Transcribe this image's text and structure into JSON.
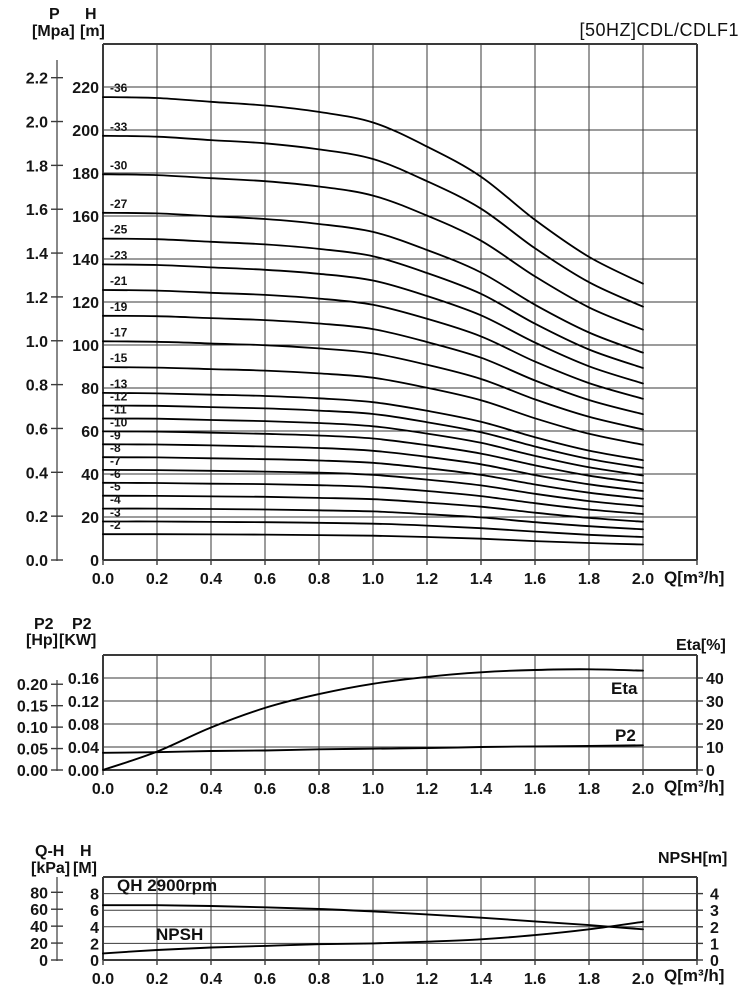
{
  "title": "[50HZ]CDL/CDLF1",
  "accent_color": "#000000",
  "grid_color": "#3a3a3a",
  "axis_headers": {
    "pressure": "P",
    "head": "H",
    "pressure_unit": "[Mpa]",
    "head_unit": "[m]",
    "power_hp": "P2",
    "power_kw": "P2",
    "hp_unit": "[Hp]",
    "kw_unit": "[KW]",
    "eta_axis": "Eta[%]",
    "qh": "Q-H",
    "h_small": "H",
    "kpa_unit": "[kPa]",
    "m_unit": "[M]",
    "npsh_axis": "NPSH[m]",
    "flow": "Q[m³/h]"
  },
  "inline_labels": {
    "eta": "Eta",
    "p2": "P2",
    "qh_rpm": "QH 2900rpm",
    "npsh": "NPSH"
  },
  "chart_data": [
    {
      "id": "head-curves",
      "type": "line",
      "title": "[50HZ]CDL/CDLF1",
      "xlabel": "Q[m³/h]",
      "ylabel_outer": "P [Mpa]",
      "ylabel_inner": "H [m]",
      "xlim": [
        0,
        2.2
      ],
      "ylim_m": [
        0,
        240
      ],
      "grid": true,
      "x": [
        0,
        0.2,
        0.4,
        0.6,
        0.8,
        1.0,
        1.2,
        1.4,
        1.6,
        1.8,
        2.0
      ],
      "x_tick_labels": [
        "0.0",
        "0.2",
        "0.4",
        "0.6",
        "0.8",
        "1.0",
        "1.2",
        "1.4",
        "1.6",
        "1.8",
        "2.0"
      ],
      "h_ticks": [
        0,
        20,
        40,
        60,
        80,
        100,
        120,
        140,
        160,
        180,
        200,
        220
      ],
      "p_ticks": [
        "0.0",
        "0.2",
        "0.4",
        "0.6",
        "0.8",
        "1.0",
        "1.2",
        "1.4",
        "1.6",
        "1.8",
        "2.0",
        "2.2"
      ],
      "series": [
        {
          "name": "-36",
          "values": [
            215.3,
            214.9,
            213.1,
            211.4,
            208.4,
            203.5,
            192.3,
            178.3,
            158.2,
            141.0,
            128.5
          ]
        },
        {
          "name": "-33",
          "values": [
            197.3,
            196.9,
            195.3,
            193.8,
            191.0,
            186.5,
            176.2,
            163.4,
            145.0,
            129.2,
            117.8
          ]
        },
        {
          "name": "-30",
          "values": [
            179.4,
            179.0,
            177.6,
            176.2,
            173.7,
            169.5,
            160.2,
            148.5,
            131.9,
            117.5,
            107.1
          ]
        },
        {
          "name": "-27",
          "values": [
            161.5,
            161.2,
            159.9,
            158.6,
            156.3,
            152.6,
            144.2,
            133.7,
            118.7,
            105.8,
            96.4
          ]
        },
        {
          "name": "-25",
          "values": [
            149.5,
            149.2,
            148.0,
            146.8,
            144.7,
            141.3,
            133.5,
            123.8,
            109.9,
            97.9,
            89.3
          ]
        },
        {
          "name": "-23",
          "values": [
            137.5,
            137.2,
            136.1,
            135.0,
            133.1,
            130.0,
            122.8,
            113.8,
            101.1,
            90.1,
            82.1
          ]
        },
        {
          "name": "-21",
          "values": [
            125.6,
            125.3,
            124.3,
            123.3,
            121.6,
            118.7,
            112.2,
            104.0,
            92.3,
            82.3,
            75.0
          ]
        },
        {
          "name": "-19",
          "values": [
            113.6,
            113.4,
            112.5,
            111.6,
            110.0,
            107.4,
            101.4,
            94.1,
            83.5,
            74.4,
            67.8
          ]
        },
        {
          "name": "-17",
          "values": [
            101.7,
            101.5,
            100.7,
            99.9,
            98.4,
            96.1,
            90.8,
            84.2,
            74.7,
            66.6,
            60.7
          ]
        },
        {
          "name": "-15",
          "values": [
            89.7,
            89.5,
            88.8,
            88.1,
            86.8,
            84.8,
            80.1,
            74.3,
            65.9,
            58.7,
            53.6
          ]
        },
        {
          "name": "-13",
          "values": [
            77.7,
            77.5,
            76.9,
            76.3,
            75.2,
            73.4,
            69.4,
            64.3,
            57.1,
            50.9,
            46.4
          ]
        },
        {
          "name": "-12",
          "values": [
            71.8,
            71.7,
            71.1,
            70.5,
            69.5,
            67.9,
            64.1,
            59.4,
            52.8,
            47.0,
            42.9
          ]
        },
        {
          "name": "-11",
          "values": [
            65.8,
            65.7,
            65.1,
            64.6,
            63.7,
            62.2,
            58.8,
            54.5,
            48.4,
            43.1,
            39.3
          ]
        },
        {
          "name": "-10",
          "values": [
            59.8,
            59.7,
            59.2,
            58.7,
            57.9,
            56.5,
            53.4,
            49.5,
            44.0,
            39.2,
            35.7
          ]
        },
        {
          "name": "-9",
          "values": [
            53.8,
            53.7,
            53.3,
            52.8,
            52.1,
            50.8,
            48.0,
            44.5,
            39.5,
            35.2,
            32.1
          ]
        },
        {
          "name": "-8",
          "values": [
            47.8,
            47.7,
            47.3,
            46.9,
            46.3,
            45.2,
            42.7,
            39.6,
            35.1,
            31.3,
            28.5
          ]
        },
        {
          "name": "-7",
          "values": [
            41.9,
            41.8,
            41.5,
            41.1,
            40.6,
            39.6,
            37.4,
            34.7,
            30.8,
            27.4,
            25.0
          ]
        },
        {
          "name": "-6",
          "values": [
            35.9,
            35.8,
            35.5,
            35.3,
            34.8,
            33.9,
            32.1,
            29.7,
            26.4,
            23.5,
            21.4
          ]
        },
        {
          "name": "-5",
          "values": [
            29.9,
            29.8,
            29.6,
            29.4,
            28.9,
            28.3,
            26.7,
            24.8,
            22.0,
            19.6,
            17.8
          ]
        },
        {
          "name": "-4",
          "values": [
            23.9,
            23.9,
            23.7,
            23.5,
            23.1,
            22.6,
            21.3,
            19.8,
            17.6,
            15.7,
            14.3
          ]
        },
        {
          "name": "-3",
          "values": [
            17.9,
            17.9,
            17.7,
            17.6,
            17.3,
            16.9,
            16.0,
            14.8,
            13.2,
            11.7,
            10.7
          ]
        },
        {
          "name": "-2",
          "values": [
            12.0,
            12.0,
            11.9,
            11.8,
            11.6,
            11.3,
            10.7,
            9.9,
            8.8,
            7.9,
            7.2
          ]
        }
      ]
    },
    {
      "id": "power-efficiency",
      "type": "line",
      "xlabel": "Q[m³/h]",
      "ylabel_outer": "P2 [Hp]",
      "ylabel_inner": "P2 [KW]",
      "ylabel_right": "Eta[%]",
      "xlim": [
        0,
        2.2
      ],
      "ylim_kw": [
        0,
        0.2
      ],
      "ylim_eta": [
        0,
        50
      ],
      "grid": true,
      "x": [
        0,
        0.2,
        0.4,
        0.6,
        0.8,
        1.0,
        1.2,
        1.4,
        1.6,
        1.8,
        2.0
      ],
      "x_tick_labels": [
        "0.0",
        "0.2",
        "0.4",
        "0.6",
        "0.8",
        "1.0",
        "1.2",
        "1.4",
        "1.6",
        "1.8",
        "2.0"
      ],
      "kw_ticks": [
        "0.00",
        "0.04",
        "0.08",
        "0.12",
        "0.16"
      ],
      "hp_ticks": [
        "0.00",
        "0.05",
        "0.10",
        "0.15",
        "0.20"
      ],
      "eta_ticks": [
        0,
        10,
        20,
        30,
        40
      ],
      "series": [
        {
          "name": "Eta",
          "unit": "%",
          "values": [
            0,
            8,
            18.5,
            27,
            33,
            37.5,
            40.5,
            42.5,
            43.5,
            43.8,
            43.2
          ]
        },
        {
          "name": "P2",
          "unit": "KW",
          "values": [
            0.03,
            0.031,
            0.033,
            0.034,
            0.036,
            0.037,
            0.038,
            0.04,
            0.041,
            0.042,
            0.043
          ]
        }
      ]
    },
    {
      "id": "qh-npsh",
      "type": "line",
      "xlabel": "Q[m³/h]",
      "ylabel_outer": "Q-H [kPa]",
      "ylabel_inner": "H [M]",
      "ylabel_right": "NPSH[m]",
      "annotation": "QH 2900rpm",
      "xlim": [
        0,
        2.2
      ],
      "ylim_m": [
        0,
        10
      ],
      "ylim_npsh": [
        0,
        5
      ],
      "grid": true,
      "x": [
        0,
        0.2,
        0.4,
        0.6,
        0.8,
        1.0,
        1.2,
        1.4,
        1.6,
        1.8,
        2.0
      ],
      "x_tick_labels": [
        "0.0",
        "0.2",
        "0.4",
        "0.6",
        "0.8",
        "1.0",
        "1.2",
        "1.4",
        "1.6",
        "1.8",
        "2.0"
      ],
      "kpa_ticks": [
        0,
        20,
        40,
        60,
        80
      ],
      "m_ticks": [
        0,
        2,
        4,
        6,
        8
      ],
      "npsh_ticks": [
        0,
        1,
        2,
        3,
        4
      ],
      "series": [
        {
          "name": "QH 2900rpm",
          "unit": "m",
          "values": [
            6.6,
            6.6,
            6.5,
            6.35,
            6.15,
            5.85,
            5.5,
            5.1,
            4.65,
            4.2,
            3.7
          ]
        },
        {
          "name": "NPSH",
          "unit": "m",
          "values": [
            0.4,
            0.6,
            0.75,
            0.85,
            0.95,
            1.0,
            1.1,
            1.25,
            1.5,
            1.85,
            2.3
          ]
        }
      ]
    }
  ]
}
